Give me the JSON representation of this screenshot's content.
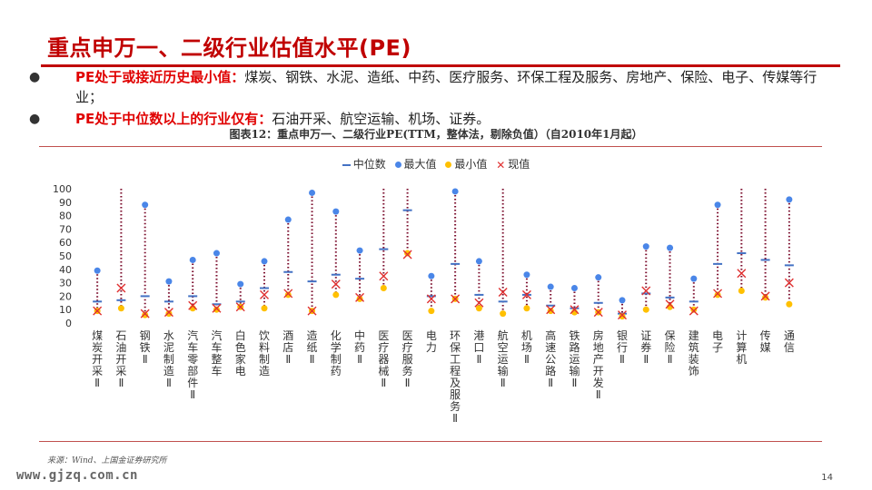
{
  "page": {
    "title": "重点申万一、二级行业估值水平(PE)",
    "bullets": [
      {
        "highlight": "PE处于或接近历史最小值：",
        "text": "煤炭、钢铁、水泥、造纸、中药、医疗服务、环保工程及服务、房地产、保险、电子、传媒等行业；"
      },
      {
        "highlight": "PE处于中位数以上的行业仅有：",
        "text": "石油开采、航空运输、机场、证券。"
      }
    ],
    "chart_caption": "图表12：重点申万一、二级行业PE(TTM，整体法，剔除负值）（自2010年1月起）",
    "source": "来源：Wind、上国金证券研究所",
    "website": "www.gjzq.com.cn",
    "page_number": "14"
  },
  "colors": {
    "accent": "#c00000",
    "median": "#4472c4",
    "max": "#4a86e8",
    "min": "#ffc000",
    "current": "#e03030"
  },
  "chart_data": {
    "type": "scatter",
    "title": "图表12：重点申万一、二级行业PE(TTM，整体法，剔除负值）（自2010年1月起）",
    "legend": [
      "中位数",
      "最大值",
      "最小值",
      "现值"
    ],
    "legend_position": "top",
    "ylim": [
      0,
      100
    ],
    "yticks": [
      0,
      10,
      20,
      30,
      40,
      50,
      60,
      70,
      80,
      90,
      100
    ],
    "grid": false,
    "categories": [
      "煤炭开采Ⅱ",
      "石油开采Ⅱ",
      "钢铁Ⅱ",
      "水泥制造Ⅱ",
      "汽车零部件Ⅱ",
      "汽车整车",
      "白色家电",
      "饮料制造",
      "酒店Ⅱ",
      "造纸Ⅱ",
      "化学制药",
      "中药Ⅱ",
      "医疗器械Ⅱ",
      "医疗服务Ⅱ",
      "电力",
      "环保工程及服务Ⅱ",
      "港口Ⅱ",
      "航空运输Ⅱ",
      "机场Ⅱ",
      "高速公路Ⅱ",
      "铁路运输Ⅱ",
      "房地产开发Ⅱ",
      "银行Ⅱ",
      "证券Ⅱ",
      "保险Ⅱ",
      "建筑装饰",
      "电子",
      "计算机",
      "传媒",
      "通信"
    ],
    "series": [
      {
        "name": "中位数",
        "values": [
          16,
          17,
          20,
          16,
          20,
          14,
          16,
          26,
          38,
          31,
          36,
          33,
          55,
          84,
          20,
          44,
          21,
          16,
          21,
          13,
          11,
          15,
          7,
          22,
          19,
          16,
          44,
          52,
          47,
          43
        ]
      },
      {
        "name": "最大值",
        "values": [
          39,
          100,
          88,
          31,
          47,
          52,
          29,
          46,
          77,
          97,
          83,
          54,
          100,
          100,
          35,
          98,
          46,
          100,
          36,
          27,
          26,
          34,
          17,
          57,
          56,
          33,
          88,
          100,
          100,
          92
        ]
      },
      {
        "name": "最小值",
        "values": [
          9,
          11,
          6,
          7,
          11,
          10,
          12,
          11,
          21,
          9,
          21,
          18,
          26,
          52,
          9,
          18,
          11,
          7,
          11,
          9,
          8,
          8,
          5,
          10,
          12,
          10,
          21,
          24,
          19,
          14
        ]
      },
      {
        "name": "现值",
        "values": [
          9,
          26,
          7,
          8,
          13,
          11,
          12,
          21,
          22,
          9,
          29,
          19,
          35,
          51,
          18,
          18,
          15,
          23,
          21,
          10,
          10,
          8,
          6,
          24,
          14,
          9,
          22,
          37,
          20,
          30
        ]
      }
    ]
  }
}
